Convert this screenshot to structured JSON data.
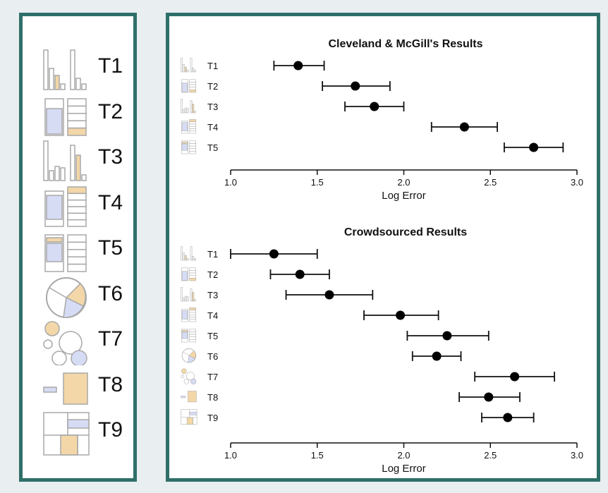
{
  "legend": {
    "items": [
      {
        "label": "T1",
        "icon": "bar-chart-adjacent-icon"
      },
      {
        "label": "T2",
        "icon": "stacked-bar-icon"
      },
      {
        "label": "T3",
        "icon": "bar-chart-separated-icon"
      },
      {
        "label": "T4",
        "icon": "stacked-bar-aligned-icon"
      },
      {
        "label": "T5",
        "icon": "stacked-bar-unaligned-icon"
      },
      {
        "label": "T6",
        "icon": "pie-chart-icon"
      },
      {
        "label": "T7",
        "icon": "bubble-chart-icon"
      },
      {
        "label": "T8",
        "icon": "area-comparison-icon"
      },
      {
        "label": "T9",
        "icon": "treemap-icon"
      }
    ]
  },
  "colors": {
    "frame": "#2f6f69",
    "highlight_orange": "#f3d7a8",
    "highlight_blue": "#d7dcf5",
    "icon_stroke": "#a8a8a8"
  },
  "chart_data": [
    {
      "type": "scatter",
      "title": "Cleveland & McGill's Results",
      "xlabel": "Log Error",
      "xlim": [
        1.0,
        3.0
      ],
      "xticks": [
        "1.0",
        "1.5",
        "2.0",
        "2.5",
        "3.0"
      ],
      "categories": [
        "T1",
        "T2",
        "T3",
        "T4",
        "T5"
      ],
      "values": [
        1.39,
        1.72,
        1.83,
        2.35,
        2.75
      ],
      "lower": [
        1.25,
        1.53,
        1.66,
        2.16,
        2.58
      ],
      "upper": [
        1.54,
        1.92,
        2.0,
        2.54,
        2.92
      ]
    },
    {
      "type": "scatter",
      "title": "Crowdsourced Results",
      "xlabel": "Log Error",
      "xlim": [
        1.0,
        3.0
      ],
      "xticks": [
        "1.0",
        "1.5",
        "2.0",
        "2.5",
        "3.0"
      ],
      "categories": [
        "T1",
        "T2",
        "T3",
        "T4",
        "T5",
        "T6",
        "T7",
        "T8",
        "T9"
      ],
      "values": [
        1.25,
        1.4,
        1.57,
        1.98,
        2.25,
        2.19,
        2.64,
        2.49,
        2.6
      ],
      "lower": [
        1.0,
        1.23,
        1.32,
        1.77,
        2.02,
        2.05,
        2.41,
        2.32,
        2.45
      ],
      "upper": [
        1.5,
        1.57,
        1.82,
        2.2,
        2.49,
        2.33,
        2.87,
        2.67,
        2.75
      ]
    }
  ]
}
